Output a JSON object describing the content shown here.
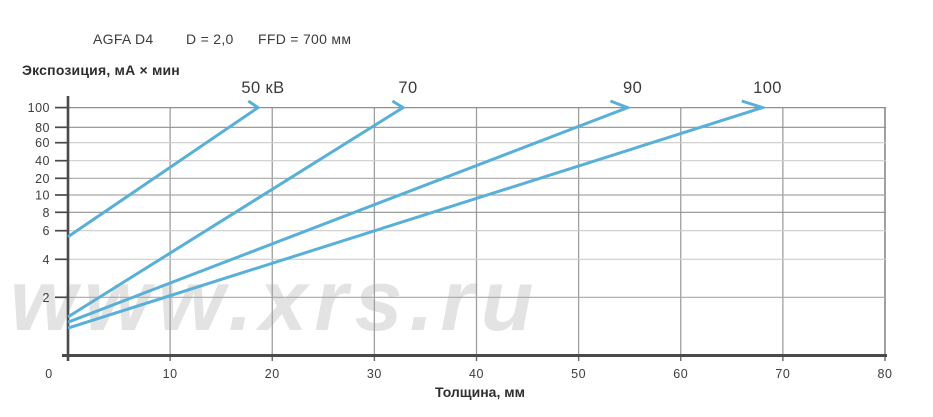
{
  "header": {
    "film": "AGFA D4",
    "density": "D = 2,0",
    "ffd": "FFD = 700 мм"
  },
  "watermark": "www.xrs.ru",
  "y_axis": {
    "title": "Экспозиция, мА × мин",
    "ticks": [
      100,
      80,
      60,
      40,
      20,
      10,
      8,
      6,
      4,
      2
    ]
  },
  "x_axis": {
    "title": "Толщина, мм",
    "ticks": [
      0,
      10,
      20,
      30,
      40,
      50,
      60,
      70,
      80
    ]
  },
  "colors": {
    "line": "#58b0d8",
    "axis": "#4a4a4a",
    "grid_dark": "#8f8f8f",
    "grid_medium": "#a8a8a8",
    "grid_light": "#cdcdcd",
    "text": "#3d3d3d",
    "watermark": "#e3e3e3"
  },
  "chart_data": {
    "type": "line",
    "title": "AGFA D4 film exposure chart, D = 2,0, FFD = 700 мм",
    "xlabel": "Толщина, мм",
    "ylabel": "Экспозиция, мА × мин",
    "xlim": [
      0,
      80
    ],
    "ylim": [
      1,
      100
    ],
    "y_scale": "log-like",
    "grid": true,
    "legend_position": "labels above line tips",
    "series": [
      {
        "name": "50 кВ",
        "kv": 50,
        "points": [
          [
            0,
            5.5
          ],
          [
            18.6,
            100
          ]
        ]
      },
      {
        "name": "70",
        "kv": 70,
        "points": [
          [
            0,
            1.4
          ],
          [
            32.8,
            100
          ]
        ]
      },
      {
        "name": "90",
        "kv": 90,
        "points": [
          [
            0,
            1.27
          ],
          [
            54.8,
            100
          ]
        ]
      },
      {
        "name": "100",
        "kv": 100,
        "points": [
          [
            0,
            1.14
          ],
          [
            68.0,
            100
          ]
        ]
      }
    ]
  }
}
